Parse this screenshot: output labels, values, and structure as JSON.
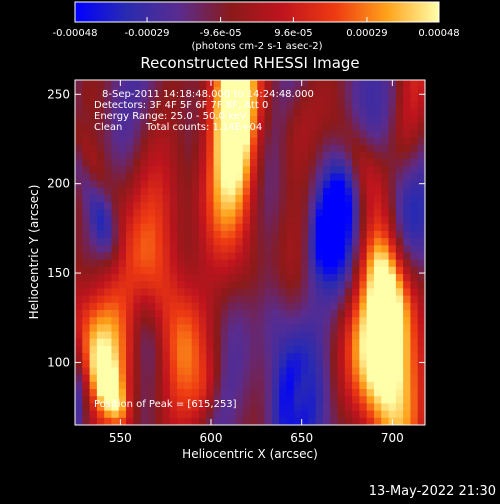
{
  "colorbar": {
    "tick_labels": [
      "-0.00048",
      "-0.00029",
      "-9.6e-05",
      "9.6e-05",
      "0.00029",
      "0.00048"
    ],
    "tick_values": [
      -0.00048,
      -0.00029,
      -9.6e-05,
      9.6e-05,
      0.00029,
      0.00048
    ],
    "range": [
      -0.00048,
      0.00048
    ],
    "unit_label": "(photons cm-2 s-1 asec-2)",
    "palette": [
      "#0000ff",
      "#2a2bb0",
      "#5a2c8e",
      "#8a1a1a",
      "#c0141e",
      "#ee3a12",
      "#ffa21a",
      "#ffffaa"
    ]
  },
  "chart_data": {
    "type": "heatmap",
    "title": "Reconstructed RHESSI Image",
    "xlabel": "Heliocentric X (arcsec)",
    "ylabel": "Heliocentric Y (arcsec)",
    "xlim": [
      525,
      718
    ],
    "ylim": [
      65,
      258
    ],
    "xticks": [
      550,
      600,
      650,
      700
    ],
    "yticks": [
      100,
      150,
      200,
      250
    ],
    "annotations": {
      "time_range": "8-Sep-2011 14:18:48.000 to 14:24:48.000",
      "detectors": "Detectors: 3F 4F 5F 6F 7F 8F, Att 0",
      "energy": "Energy Range: 25.0 - 50.0 keV",
      "method": "Clean",
      "counts": "Total counts: 1.14E+04",
      "peak": "Position of Peak = [615,253]"
    },
    "peak_position": [
      615,
      253
    ],
    "grid": false
  },
  "footer": {
    "timestamp": "13-May-2022 21:30"
  }
}
